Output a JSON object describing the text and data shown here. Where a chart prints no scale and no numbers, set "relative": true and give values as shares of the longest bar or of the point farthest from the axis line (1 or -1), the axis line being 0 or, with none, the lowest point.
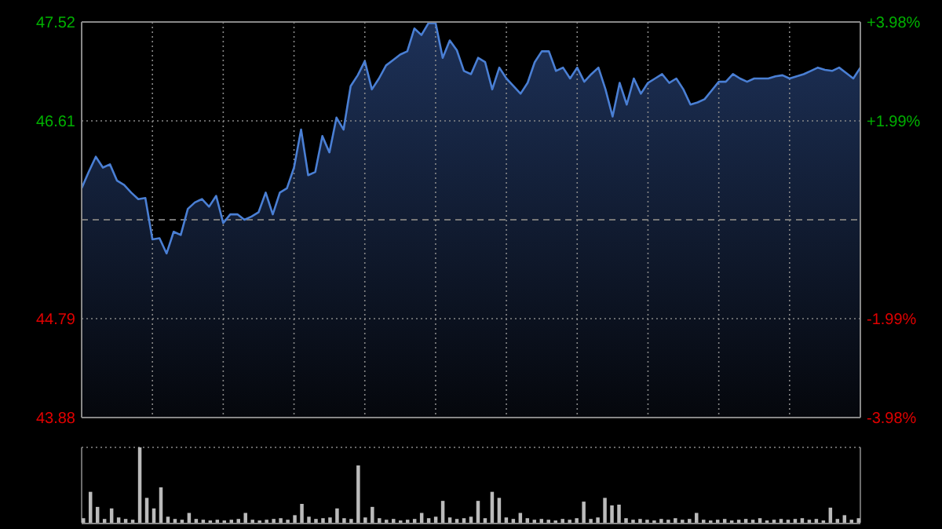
{
  "chart_data": [
    {
      "type": "area",
      "categories": [
        null,
        null,
        null,
        null,
        null,
        null,
        null,
        null,
        null,
        null,
        null,
        null,
        null,
        null,
        null,
        null,
        null,
        null,
        null,
        null,
        null,
        null,
        null,
        null,
        null,
        null,
        null,
        null,
        null,
        null,
        null,
        null,
        null,
        null,
        null,
        null,
        null,
        null,
        null,
        null,
        null,
        null,
        null,
        null,
        null,
        null,
        null,
        null,
        null,
        null,
        null,
        null,
        null,
        null,
        null,
        null,
        null,
        null,
        null,
        null,
        null,
        null,
        null,
        null,
        null,
        null,
        null,
        null,
        null,
        null,
        null,
        null,
        null,
        null,
        null,
        null,
        null,
        null,
        null,
        null,
        null,
        null,
        null,
        null,
        null,
        null,
        null,
        null,
        null,
        null,
        null,
        null,
        null,
        null,
        null,
        null,
        null,
        null,
        null,
        null,
        null,
        null,
        null,
        null,
        null,
        null,
        null,
        null,
        null,
        null,
        null
      ],
      "ylim": [
        43.88,
        47.52
      ],
      "yticks": [
        47.52,
        46.61,
        44.79,
        43.88
      ],
      "y2lim": [
        -3.98,
        3.98
      ],
      "y2ticks": [
        {
          "value": 3.98,
          "label": "+3.98%"
        },
        {
          "value": 1.99,
          "label": "+1.99%"
        },
        {
          "value": -1.99,
          "label": "-1.99%"
        },
        {
          "value": -3.98,
          "label": "-3.98%"
        }
      ],
      "grid": true,
      "ref_lines": [
        {
          "axis": "y2",
          "value": 0,
          "line_style": "dashed",
          "color": "#777777"
        }
      ],
      "series": [
        {
          "color": "#4a7fd4",
          "values": [
            45.99,
            46.14,
            46.28,
            46.18,
            46.21,
            46.06,
            46.02,
            45.95,
            45.89,
            45.9,
            45.52,
            45.53,
            45.39,
            45.59,
            45.56,
            45.8,
            45.86,
            45.89,
            45.82,
            45.92,
            45.67,
            45.75,
            45.75,
            45.7,
            45.73,
            45.77,
            45.95,
            45.75,
            45.95,
            45.99,
            46.18,
            46.53,
            46.11,
            46.14,
            46.47,
            46.32,
            46.64,
            46.53,
            46.93,
            47.03,
            47.16,
            46.9,
            47.0,
            47.12,
            47.17,
            47.22,
            47.25,
            47.46,
            47.4,
            47.51,
            47.51,
            47.19,
            47.35,
            47.26,
            47.07,
            47.04,
            47.19,
            47.15,
            46.9,
            47.1,
            47.0,
            46.93,
            46.86,
            46.96,
            47.15,
            47.25,
            47.25,
            47.07,
            47.1,
            47.0,
            47.1,
            46.97,
            47.04,
            47.1,
            46.9,
            46.65,
            46.96,
            46.76,
            47.0,
            46.86,
            46.96,
            47.0,
            47.04,
            46.96,
            47.0,
            46.9,
            46.76,
            46.78,
            46.81,
            46.89,
            46.97,
            46.97,
            47.04,
            47.0,
            46.97,
            47.0,
            47.0,
            47.0,
            47.02,
            47.03,
            47.0,
            47.02,
            47.04,
            47.07,
            47.1,
            47.08,
            47.07,
            47.1,
            47.05,
            47.0,
            47.1
          ]
        }
      ]
    },
    {
      "type": "bar",
      "relative": true,
      "categories": [
        null,
        null,
        null,
        null,
        null,
        null,
        null,
        null,
        null,
        null,
        null,
        null,
        null,
        null,
        null,
        null,
        null,
        null,
        null,
        null,
        null,
        null,
        null,
        null,
        null,
        null,
        null,
        null,
        null,
        null,
        null,
        null,
        null,
        null,
        null,
        null,
        null,
        null,
        null,
        null,
        null,
        null,
        null,
        null,
        null,
        null,
        null,
        null,
        null,
        null,
        null,
        null,
        null,
        null,
        null,
        null,
        null,
        null,
        null,
        null,
        null,
        null,
        null,
        null,
        null,
        null,
        null,
        null,
        null,
        null,
        null,
        null,
        null,
        null,
        null,
        null,
        null,
        null,
        null,
        null,
        null,
        null,
        null,
        null,
        null,
        null,
        null,
        null,
        null,
        null,
        null,
        null,
        null,
        null,
        null,
        null,
        null,
        null,
        null,
        null,
        null,
        null,
        null,
        null,
        null,
        null,
        null,
        null,
        null,
        null,
        null
      ],
      "color": "#bbbbbb",
      "values": [
        0.06,
        0.41,
        0.21,
        0.05,
        0.19,
        0.07,
        0.05,
        0.04,
        1,
        0.33,
        0.19,
        0.47,
        0.08,
        0.05,
        0.04,
        0.13,
        0.05,
        0.04,
        0.03,
        0.04,
        0.03,
        0.04,
        0.05,
        0.13,
        0.04,
        0.03,
        0.04,
        0.05,
        0.06,
        0.04,
        0.1,
        0.25,
        0.08,
        0.05,
        0.06,
        0.07,
        0.19,
        0.06,
        0.05,
        0.76,
        0.07,
        0.21,
        0.06,
        0.04,
        0.05,
        0.03,
        0.04,
        0.05,
        0.13,
        0.06,
        0.08,
        0.29,
        0.07,
        0.05,
        0.06,
        0.08,
        0.29,
        0.06,
        0.41,
        0.33,
        0.07,
        0.05,
        0.13,
        0.06,
        0.04,
        0.05,
        0.04,
        0.03,
        0.05,
        0.04,
        0.06,
        0.28,
        0.05,
        0.07,
        0.33,
        0.23,
        0.24,
        0.06,
        0.04,
        0.05,
        0.04,
        0.03,
        0.05,
        0.04,
        0.06,
        0.04,
        0.05,
        0.13,
        0.04,
        0.03,
        0.04,
        0.05,
        0.03,
        0.04,
        0.05,
        0.04,
        0.06,
        0.03,
        0.04,
        0.05,
        0.04,
        0.05,
        0.06,
        0.04,
        0.05,
        0.03,
        0.2,
        0.05,
        0.1,
        0.04,
        0.06
      ]
    }
  ]
}
